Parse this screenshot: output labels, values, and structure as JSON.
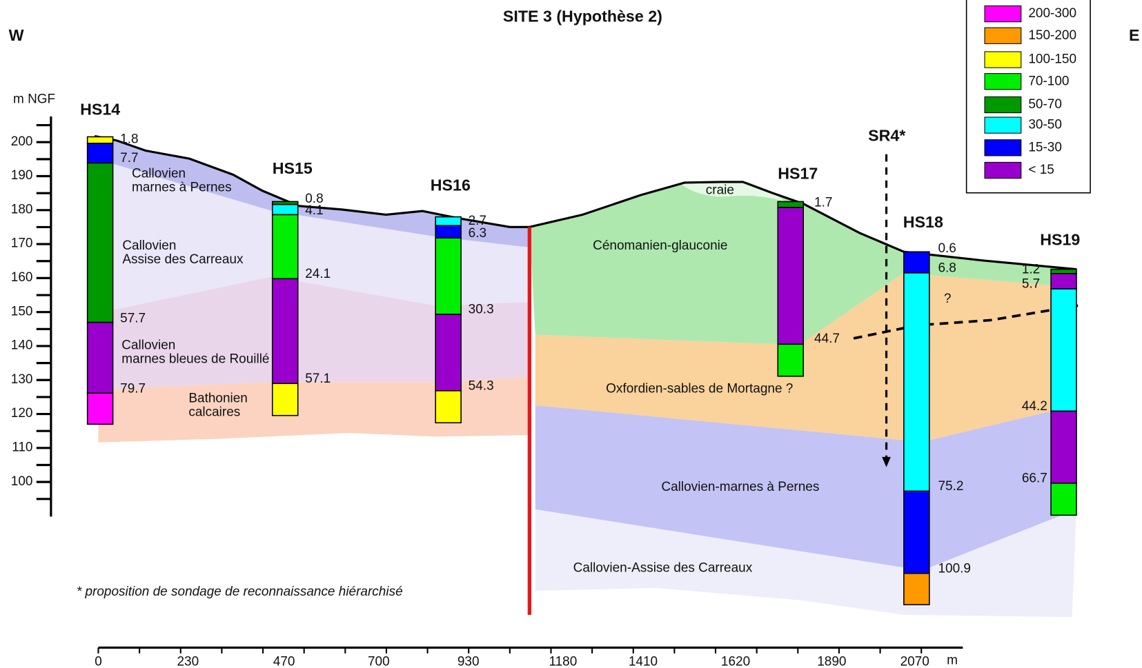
{
  "title": "SITE 3 (Hypothèse 2)",
  "west": "W",
  "east": "E",
  "y_axis": {
    "label": "m NGF",
    "ticks": [
      "200",
      "190",
      "180",
      "170",
      "160",
      "150",
      "140",
      "130",
      "120",
      "110",
      "100"
    ]
  },
  "x_axis": {
    "unit": "m",
    "ticks": [
      "0",
      "230",
      "470",
      "700",
      "930",
      "1180",
      "1410",
      "1620",
      "1890",
      "2070"
    ]
  },
  "legend": [
    {
      "label": "200-300",
      "color": "#ff00ff"
    },
    {
      "label": "150-200",
      "color": "#ff9900"
    },
    {
      "label": "100-150",
      "color": "#ffff00"
    },
    {
      "label": "70-100",
      "color": "#00ee00"
    },
    {
      "label": "50-70",
      "color": "#009900"
    },
    {
      "label": "30-50",
      "color": "#00ffff"
    },
    {
      "label": "15-30",
      "color": "#0000ff"
    },
    {
      "label": "< 15",
      "color": "#9900cc"
    }
  ],
  "boreholes": [
    {
      "name": "HS14",
      "depths": [
        "1.8",
        "7.7",
        "57.7",
        "79.7"
      ]
    },
    {
      "name": "HS15",
      "depths": [
        "0.8",
        "4.1",
        "24.1",
        "57.1"
      ]
    },
    {
      "name": "HS16",
      "depths": [
        "2.7",
        "6.3",
        "30.3",
        "54.3"
      ]
    },
    {
      "name": "HS17",
      "depths": [
        "1.7",
        "44.7"
      ]
    },
    {
      "name": "HS18",
      "depths": [
        "0.6",
        "6.8",
        "75.2",
        "100.9"
      ]
    },
    {
      "name": "HS19",
      "depths": [
        "1.2",
        "5.7",
        "44.2",
        "66.7"
      ]
    }
  ],
  "layers": {
    "west": [
      [
        "Callovien",
        "marnes à Pernes"
      ],
      [
        "Callovien",
        "Assise des Carreaux"
      ],
      [
        "Callovien",
        "marnes bleues de Rouillé"
      ],
      [
        "Bathonien",
        "calcaires"
      ]
    ],
    "east": [
      "craie",
      "Cénomanien-glauconie",
      "Oxfordien-sables de Mortagne ?",
      "Callovien-marnes à Pernes",
      "Callovien-Assise des Carreaux"
    ]
  },
  "sr4": "SR4*",
  "question": "?",
  "footnote": "* proposition de sondage de reconnaissance hiérarchisé"
}
